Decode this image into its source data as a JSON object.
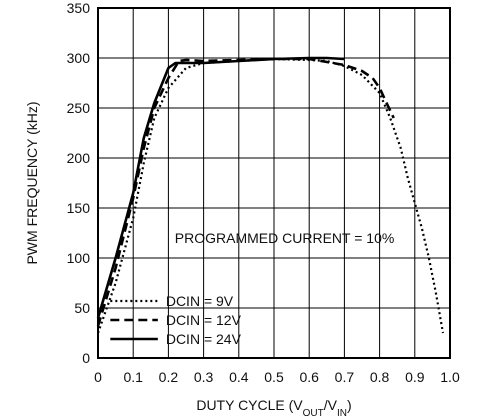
{
  "chart_data": {
    "type": "line",
    "xlabel": "DUTY CYCLE (V",
    "xlabel_sub1": "OUT",
    "xlabel_mid": "/V",
    "xlabel_sub2": "IN",
    "xlabel_end": ")",
    "ylabel": "PWM FREQUENCY (kHz)",
    "xlim": [
      0,
      1.0
    ],
    "ylim": [
      0,
      350
    ],
    "xticks": [
      "0",
      "0.1",
      "0.2",
      "0.3",
      "0.4",
      "0.5",
      "0.6",
      "0.7",
      "0.8",
      "0.9",
      "1.0"
    ],
    "yticks": [
      "0",
      "50",
      "100",
      "150",
      "200",
      "250",
      "300",
      "350"
    ],
    "grid": true,
    "legend_position": "bottom-left",
    "annotation": "PROGRAMMED CURRENT = 10%",
    "series": [
      {
        "name": "DCIN = 9V",
        "style": "dotted",
        "x": [
          0.0,
          0.05,
          0.1,
          0.13,
          0.16,
          0.2,
          0.25,
          0.3,
          0.4,
          0.5,
          0.6,
          0.65,
          0.7,
          0.75,
          0.8,
          0.83,
          0.86,
          0.88,
          0.9,
          0.92,
          0.94,
          0.96,
          0.98
        ],
        "y": [
          25,
          75,
          140,
          195,
          240,
          270,
          290,
          295,
          297,
          299,
          298,
          297,
          292,
          283,
          265,
          240,
          210,
          180,
          155,
          130,
          100,
          65,
          25
        ]
      },
      {
        "name": "DCIN = 12V",
        "style": "dashed",
        "x": [
          0.0,
          0.05,
          0.1,
          0.13,
          0.16,
          0.2,
          0.23,
          0.25,
          0.3,
          0.4,
          0.5,
          0.6,
          0.7,
          0.75,
          0.78,
          0.8,
          0.82,
          0.84
        ],
        "y": [
          32,
          90,
          160,
          210,
          250,
          280,
          297,
          298,
          297,
          298,
          299,
          299,
          293,
          287,
          280,
          270,
          255,
          240
        ]
      },
      {
        "name": "DCIN = 24V",
        "style": "solid",
        "x": [
          0.0,
          0.05,
          0.1,
          0.13,
          0.16,
          0.2,
          0.22,
          0.25,
          0.3,
          0.4,
          0.5,
          0.6,
          0.65,
          0.7
        ],
        "y": [
          40,
          100,
          165,
          220,
          255,
          290,
          295,
          295,
          295,
          297,
          299,
          300,
          300,
          299
        ]
      }
    ]
  }
}
